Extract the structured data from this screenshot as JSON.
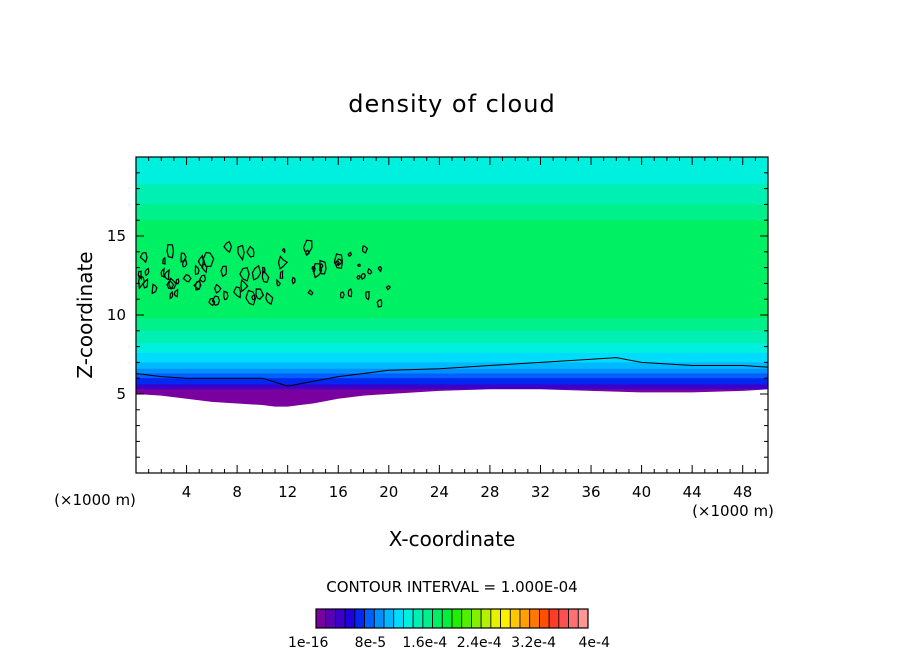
{
  "chart_data": {
    "type": "heatmap",
    "title": "density of cloud",
    "xlabel": "X-coordinate",
    "ylabel": "Z-coordinate",
    "x_unit": "(×1000 m)",
    "z_unit": "(×1000 m)",
    "xlim": [
      0,
      50
    ],
    "ylim": [
      0,
      20
    ],
    "x_ticks": [
      4,
      8,
      12,
      16,
      20,
      24,
      28,
      32,
      36,
      40,
      44,
      48
    ],
    "y_ticks": [
      5,
      10,
      15
    ],
    "contour_interval_label": "CONTOUR INTERVAL = 1.000E-04",
    "colorbar": {
      "tick_labels": [
        "1e-16",
        "8e-5",
        "1.6e-4",
        "2.4e-4",
        "3.2e-4",
        "4e-4"
      ],
      "colors": [
        "#7a00a0",
        "#5a00b4",
        "#3c00c8",
        "#2000dc",
        "#0028f0",
        "#0060ff",
        "#0090ff",
        "#00b8ff",
        "#00dcff",
        "#00f0e0",
        "#00f0b4",
        "#00f08c",
        "#00f064",
        "#00f03c",
        "#1ef000",
        "#50f000",
        "#82f000",
        "#b4f000",
        "#e6f000",
        "#fff000",
        "#ffc800",
        "#ffa000",
        "#ff7800",
        "#ff5000",
        "#ff3c28",
        "#ff5050",
        "#ff7070",
        "#ff9696"
      ]
    },
    "field_bands": [
      {
        "z_top": 20.0,
        "color": "#00f0e0"
      },
      {
        "z_top": 18.3,
        "color": "#00f0b4"
      },
      {
        "z_top": 17.0,
        "color": "#00f08c"
      },
      {
        "z_top": 16.0,
        "color": "#00f064"
      },
      {
        "z_top": 9.8,
        "color": "#00f08c"
      },
      {
        "z_top": 9.0,
        "color": "#00f0b4"
      },
      {
        "z_top": 8.2,
        "color": "#00f0e0"
      },
      {
        "z_top": 7.6,
        "color": "#00dcff"
      },
      {
        "z_top": 7.0,
        "color": "#00b8ff"
      },
      {
        "z_top": 6.6,
        "color": "#0090ff"
      },
      {
        "z_top": 6.3,
        "color": "#0060ff"
      },
      {
        "z_top": 6.0,
        "color": "#0028f0"
      },
      {
        "z_top": 5.6,
        "color": "#3c00c8"
      },
      {
        "z_top": 5.3,
        "color": "#7a00a0"
      }
    ],
    "cloud_base_profile": {
      "x": [
        0,
        2,
        4,
        6,
        8,
        10,
        11,
        12,
        13,
        14,
        16,
        18,
        20,
        24,
        28,
        32,
        36,
        40,
        44,
        48,
        50
      ],
      "z": [
        5.0,
        4.9,
        4.7,
        4.5,
        4.4,
        4.3,
        4.2,
        4.2,
        4.3,
        4.4,
        4.7,
        4.9,
        5.0,
        5.2,
        5.3,
        5.3,
        5.2,
        5.1,
        5.1,
        5.2,
        5.3
      ]
    },
    "contour_line_profile": {
      "x": [
        0,
        2,
        4,
        6,
        8,
        10,
        12,
        14,
        16,
        18,
        20,
        24,
        28,
        32,
        36,
        38,
        40,
        44,
        48,
        50
      ],
      "z": [
        6.3,
        6.1,
        6.0,
        6.0,
        6.0,
        6.0,
        5.5,
        5.8,
        6.1,
        6.3,
        6.5,
        6.6,
        6.8,
        7.0,
        7.2,
        7.3,
        7.0,
        6.8,
        6.8,
        6.7
      ]
    }
  }
}
